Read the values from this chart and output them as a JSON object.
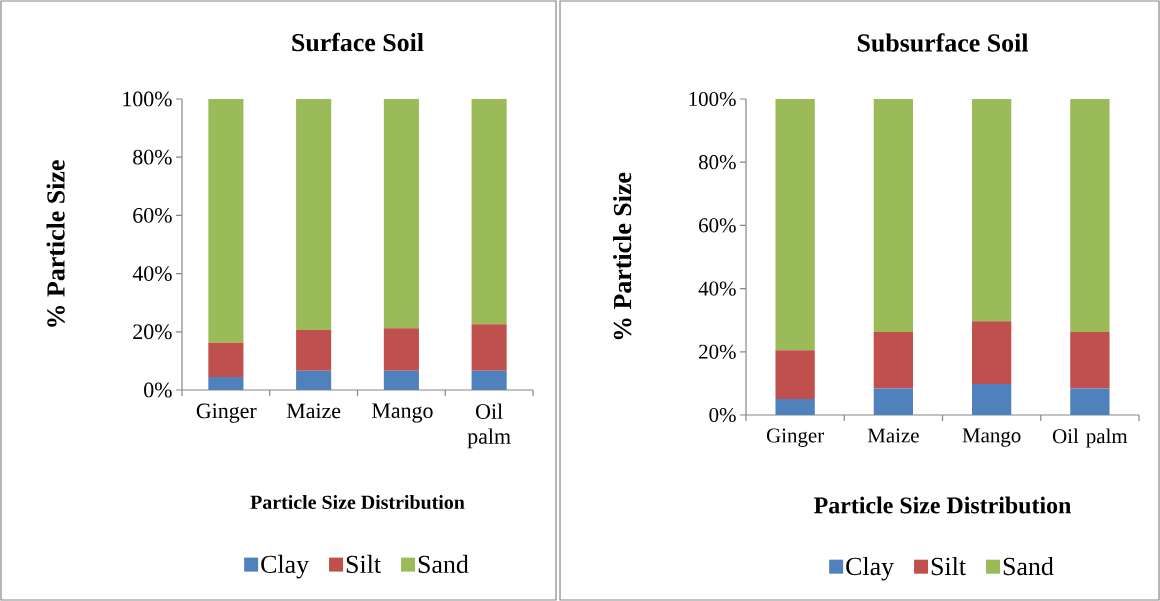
{
  "chart_data": [
    {
      "type": "bar",
      "stacked": true,
      "title": "Surface Soil",
      "xlabel": "Particle Size Distribution",
      "ylabel": "% Particle Size",
      "legend": "bottom",
      "categories": [
        "Ginger",
        "Maize",
        "Mango",
        "Oil palm"
      ],
      "series": [
        {
          "name": "Clay",
          "color": "#4f81bd",
          "values": [
            4.5,
            6.6,
            6.6,
            6.6
          ]
        },
        {
          "name": "Silt",
          "color": "#c0504d",
          "values": [
            11.7,
            14.0,
            14.6,
            16.0
          ]
        },
        {
          "name": "Sand",
          "color": "#9bbb59",
          "values": [
            83.8,
            79.4,
            78.8,
            77.4
          ]
        }
      ],
      "ylim": [
        0,
        100
      ],
      "yticks": [
        {
          "value": 0,
          "label": "0%"
        },
        {
          "value": 20,
          "label": "20%"
        },
        {
          "value": 40,
          "label": "40%"
        },
        {
          "value": 60,
          "label": "60%"
        },
        {
          "value": 80,
          "label": "80%"
        },
        {
          "value": 100,
          "label": "100%"
        }
      ]
    },
    {
      "type": "bar",
      "stacked": true,
      "title": "Subsurface Soil",
      "xlabel": "Particle Size Distribution",
      "ylabel": "% Particle Size",
      "legend": "bottom",
      "categories": [
        "Ginger",
        "Maize",
        "Mango",
        "Oil palm"
      ],
      "series": [
        {
          "name": "Clay",
          "color": "#4f81bd",
          "values": [
            5.1,
            8.4,
            9.8,
            8.4
          ]
        },
        {
          "name": "Silt",
          "color": "#c0504d",
          "values": [
            15.4,
            17.9,
            19.9,
            17.9
          ]
        },
        {
          "name": "Sand",
          "color": "#9bbb59",
          "values": [
            79.5,
            73.7,
            70.3,
            73.7
          ]
        }
      ],
      "ylim": [
        0,
        100
      ],
      "yticks": [
        {
          "value": 0,
          "label": "0%"
        },
        {
          "value": 20,
          "label": "20%"
        },
        {
          "value": 40,
          "label": "40%"
        },
        {
          "value": 60,
          "label": "60%"
        },
        {
          "value": 80,
          "label": "80%"
        },
        {
          "value": 100,
          "label": "100%"
        }
      ]
    }
  ]
}
